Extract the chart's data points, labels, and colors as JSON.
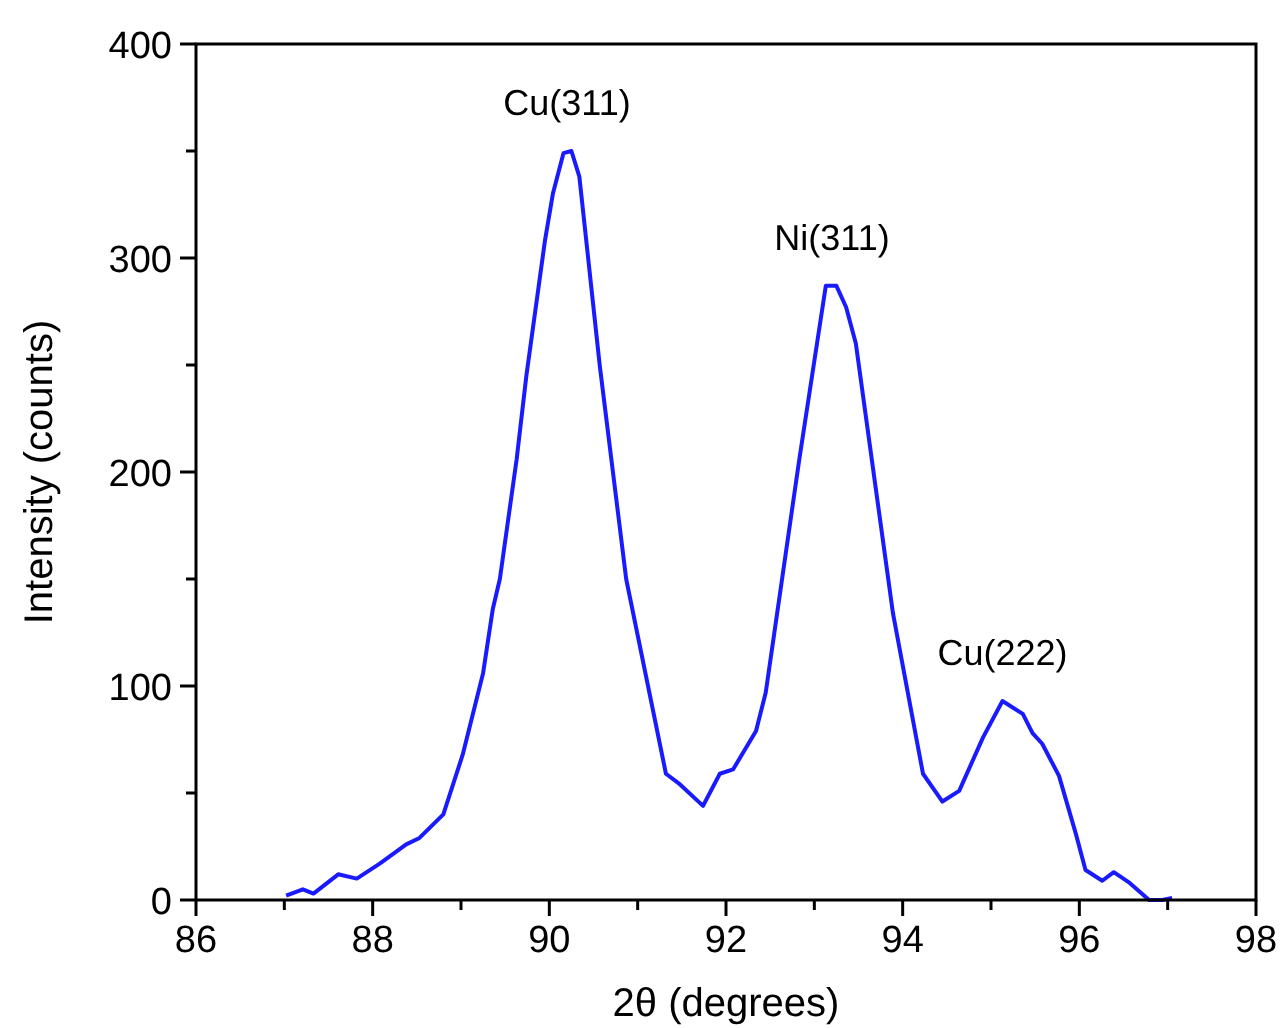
{
  "chart_data": {
    "type": "line",
    "xlabel": "2θ (degrees)",
    "ylabel": "Intensity (counts)",
    "x": [
      87.02,
      87.21,
      87.33,
      87.61,
      87.82,
      88.08,
      88.38,
      88.53,
      88.8,
      89.02,
      89.25,
      89.36,
      89.44,
      89.63,
      89.74,
      89.95,
      90.04,
      90.16,
      90.25,
      90.34,
      90.57,
      90.87,
      91.32,
      91.48,
      91.74,
      91.93,
      92.08,
      92.34,
      92.45,
      92.83,
      93.13,
      93.25,
      93.36,
      93.47,
      93.89,
      94.23,
      94.45,
      94.64,
      94.91,
      95.13,
      95.36,
      95.47,
      95.58,
      95.77,
      95.96,
      96.07,
      96.26,
      96.39,
      96.57,
      96.79,
      96.94,
      97.05
    ],
    "series": [
      {
        "color": "#1a1aff",
        "values": [
          2,
          5,
          3,
          12,
          10,
          17,
          26,
          29,
          40,
          68,
          106,
          136,
          150,
          206,
          245,
          308,
          330,
          349,
          350,
          338,
          250,
          150,
          59,
          54,
          44,
          59,
          61,
          79,
          97,
          206,
          287,
          287,
          277,
          260,
          134,
          59,
          46,
          51,
          76,
          93,
          87,
          78,
          73,
          58,
          31,
          14,
          9,
          13,
          8,
          0,
          0,
          1
        ]
      }
    ],
    "xlim": [
      86,
      98
    ],
    "xticks": [
      86,
      {
        "value": 87,
        "label": null
      },
      88,
      {
        "value": 89,
        "label": null
      },
      90,
      {
        "value": 91,
        "label": null
      },
      92,
      {
        "value": 93,
        "label": null
      },
      94,
      {
        "value": 95,
        "label": null
      },
      96,
      {
        "value": 97,
        "label": null
      },
      98
    ],
    "ylim": [
      0,
      400
    ],
    "yticks": [
      0,
      {
        "value": 50,
        "label": null
      },
      100,
      {
        "value": 150,
        "label": null
      },
      200,
      {
        "value": 250,
        "label": null
      },
      300,
      {
        "value": 350,
        "label": null
      },
      400
    ],
    "annotations": [
      {
        "text": "Cu(311)",
        "x": 90.2,
        "y": 350
      },
      {
        "text": "Ni(311)",
        "x": 93.2,
        "y": 287
      },
      {
        "text": "Cu(222)",
        "x": 95.13,
        "y": 93
      }
    ],
    "grid": false,
    "marker": "none",
    "line_style": "solid"
  }
}
